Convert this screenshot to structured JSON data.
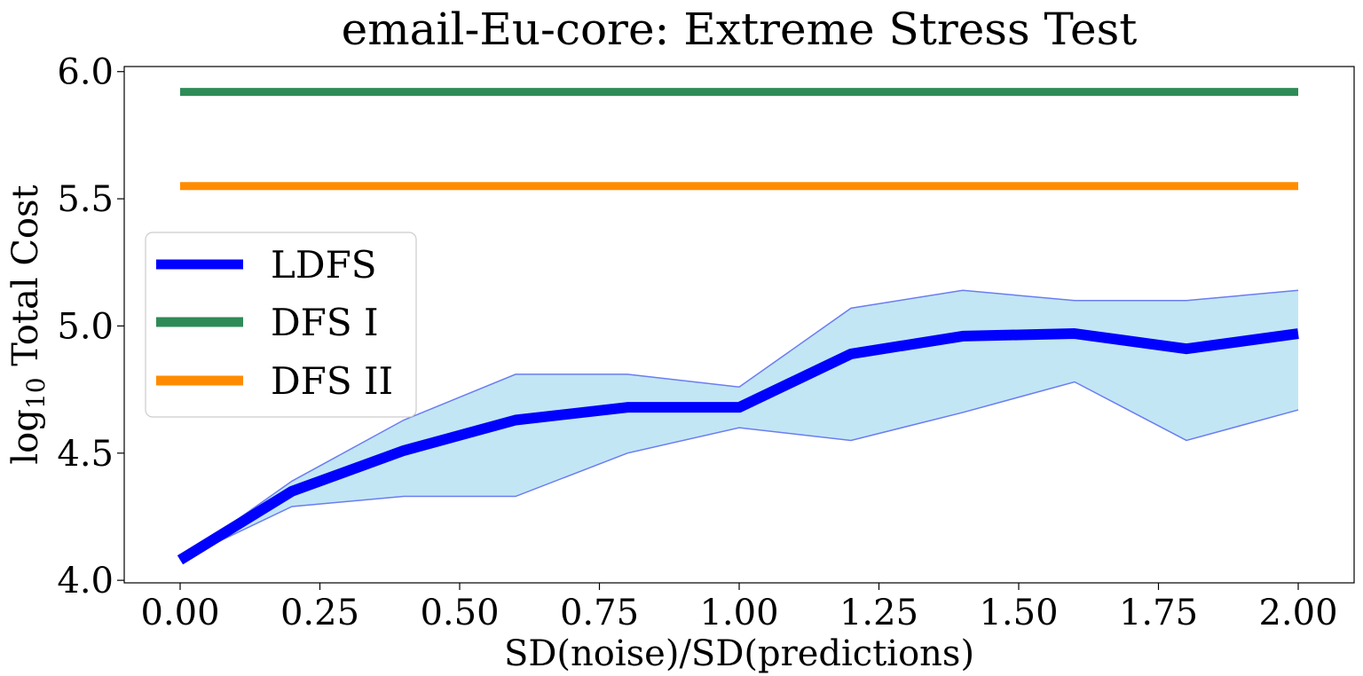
{
  "chart_data": {
    "type": "line",
    "title": "email-Eu-core: Extreme Stress Test",
    "xlabel": "SD(noise)/SD(predictions)",
    "ylabel_main": "log",
    "ylabel_sub": "10",
    "ylabel_rest": " Total Cost",
    "xlim": [
      -0.1,
      2.1
    ],
    "ylim": [
      3.99,
      6.02
    ],
    "x": [
      0.0,
      0.2,
      0.4,
      0.6,
      0.8,
      1.0,
      1.2,
      1.4,
      1.6,
      1.8,
      2.0
    ],
    "x_ticks": [
      0.0,
      0.25,
      0.5,
      0.75,
      1.0,
      1.25,
      1.5,
      1.75,
      2.0
    ],
    "x_tick_labels": [
      "0.00",
      "0.25",
      "0.50",
      "0.75",
      "1.00",
      "1.25",
      "1.50",
      "1.75",
      "2.00"
    ],
    "y_ticks": [
      4.0,
      4.5,
      5.0,
      5.5,
      6.0
    ],
    "y_tick_labels": [
      "4.0",
      "4.5",
      "5.0",
      "5.5",
      "6.0"
    ],
    "series": [
      {
        "name": "LDFS",
        "color": "#0000ff",
        "values": [
          4.08,
          4.35,
          4.51,
          4.63,
          4.68,
          4.68,
          4.89,
          4.96,
          4.97,
          4.91,
          4.97
        ],
        "band_lower": [
          4.08,
          4.29,
          4.33,
          4.33,
          4.5,
          4.6,
          4.55,
          4.66,
          4.78,
          4.55,
          4.67
        ],
        "band_upper": [
          4.08,
          4.39,
          4.63,
          4.81,
          4.81,
          4.76,
          5.07,
          5.14,
          5.1,
          5.1,
          5.14
        ],
        "band_fill": "#87ceeb",
        "band_edge": "#6a7df2"
      },
      {
        "name": "DFS I",
        "color": "#2e8b57",
        "values": [
          5.92,
          5.92,
          5.92,
          5.92,
          5.92,
          5.92,
          5.92,
          5.92,
          5.92,
          5.92,
          5.92
        ]
      },
      {
        "name": "DFS II",
        "color": "#ff8c00",
        "values": [
          5.55,
          5.55,
          5.55,
          5.55,
          5.55,
          5.55,
          5.55,
          5.55,
          5.55,
          5.55,
          5.55
        ]
      }
    ],
    "legend_position": "center-left",
    "grid": false
  }
}
